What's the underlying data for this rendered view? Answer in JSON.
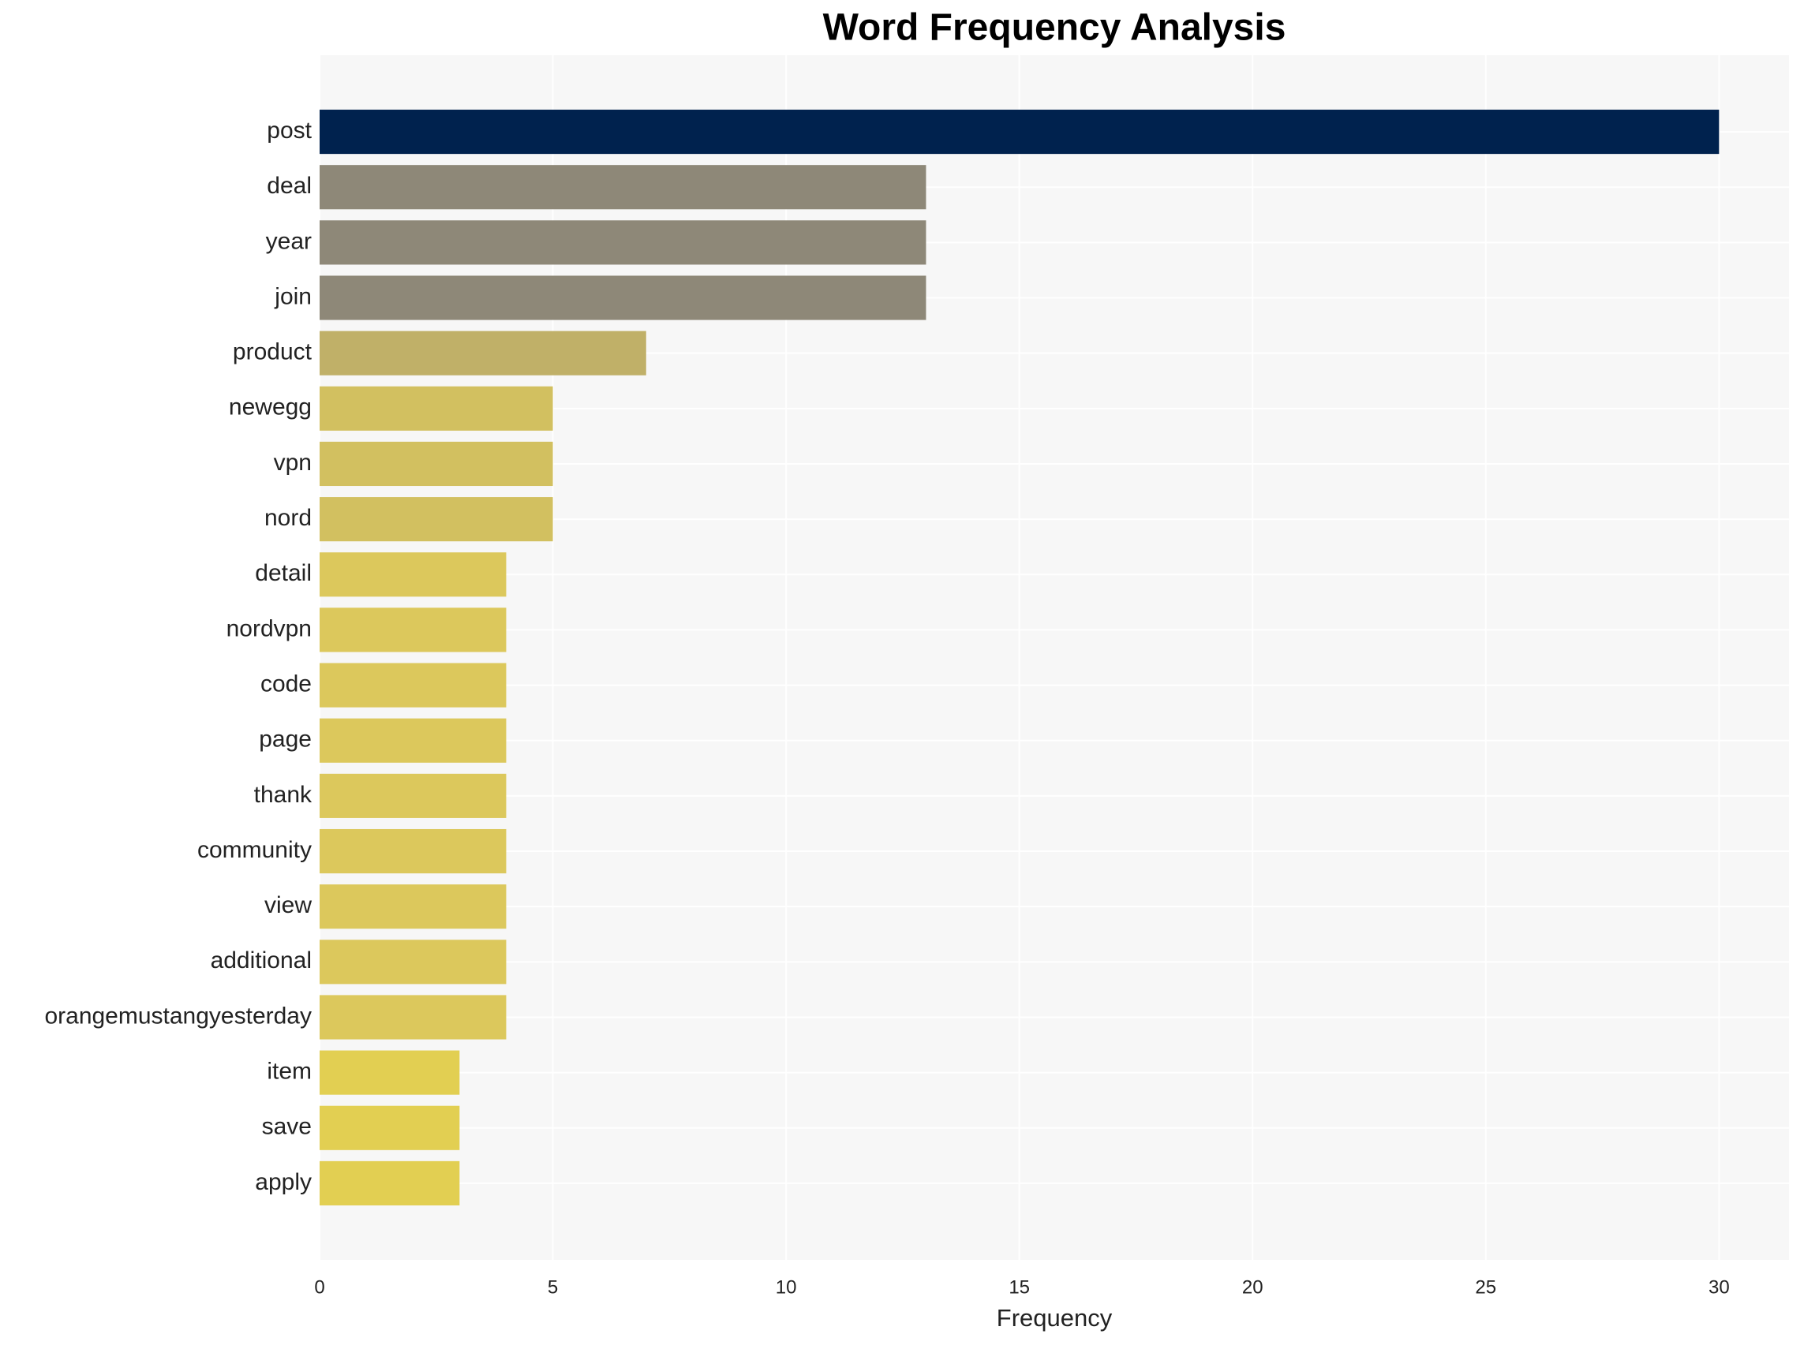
{
  "chart_data": {
    "type": "bar",
    "orientation": "horizontal",
    "title": "Word Frequency Analysis",
    "x_label": "Frequency",
    "categories": [
      "post",
      "deal",
      "year",
      "join",
      "product",
      "newegg",
      "vpn",
      "nord",
      "detail",
      "nordvpn",
      "code",
      "page",
      "thank",
      "community",
      "view",
      "additional",
      "orangemustangyesterday",
      "item",
      "save",
      "apply"
    ],
    "values": [
      30,
      13,
      13,
      13,
      7,
      5,
      5,
      5,
      4,
      4,
      4,
      4,
      4,
      4,
      4,
      4,
      4,
      3,
      3,
      3
    ],
    "colors": [
      "#00224e",
      "#8e8878",
      "#8e8878",
      "#8e8878",
      "#c0b068",
      "#d2c060",
      "#d2c060",
      "#d2c060",
      "#dcc85c",
      "#dcc85c",
      "#dcc85c",
      "#dcc85c",
      "#dcc85c",
      "#dcc85c",
      "#dcc85c",
      "#dcc85c",
      "#dcc85c",
      "#e2cf52",
      "#e2cf52",
      "#e2cf52"
    ],
    "xlim": [
      0,
      31.5
    ],
    "xticks": [
      0,
      5,
      10,
      15,
      20,
      25,
      30
    ],
    "grid": true
  }
}
